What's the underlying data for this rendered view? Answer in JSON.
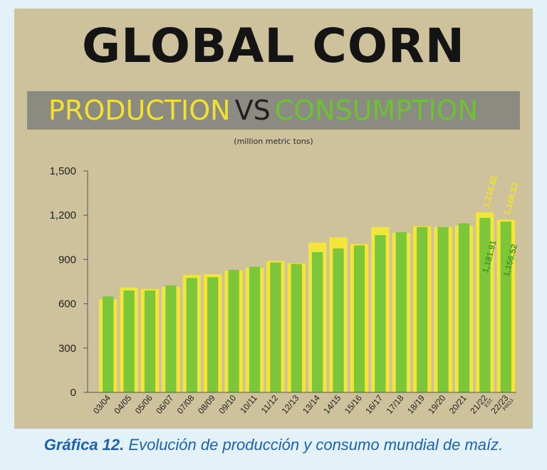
{
  "title": "GLOBAL CORN",
  "subtitle": {
    "production": "PRODUCTION",
    "vs": "VS",
    "consumption": "CONSUMPTION"
  },
  "unit": "(million metric tons)",
  "caption": {
    "label": "Gráfica 12.",
    "text": "Evolución de producción y consumo mundial de maíz."
  },
  "colors": {
    "production": "#f4e53a",
    "consumption": "#7cc63a",
    "background": "#cdc29b",
    "caption": "#1b62b2"
  },
  "chart_data": {
    "type": "bar",
    "title": "GLOBAL CORN PRODUCTION VS CONSUMPTION",
    "ylabel": "(million metric tons)",
    "ylim": [
      0,
      1500
    ],
    "yticks": [
      "0",
      "300",
      "600",
      "900",
      "1,200",
      "1,500"
    ],
    "categories": [
      "03/04",
      "04/05",
      "05/06",
      "06/07",
      "07/08",
      "08/09",
      "09/10",
      "10/11",
      "11/12",
      "12/13",
      "13/14",
      "14/15",
      "15/16",
      "16/17",
      "17/18",
      "18/19",
      "19/20",
      "20/21",
      "21/22",
      "22/23"
    ],
    "category_notes": [
      "",
      "",
      "",
      "",
      "",
      "",
      "",
      "",
      "",
      "",
      "",
      "",
      "",
      "",
      "",
      "",
      "",
      "",
      "EST.",
      "PROJ."
    ],
    "series": [
      {
        "name": "PRODUCTION",
        "values": [
          630,
          710,
          700,
          715,
          795,
          800,
          825,
          845,
          890,
          875,
          1015,
          1050,
          1005,
          1120,
          1080,
          1125,
          1120,
          1130,
          1219,
          1169
        ]
      },
      {
        "name": "CONSUMPTION",
        "values": [
          650,
          690,
          690,
          725,
          775,
          780,
          830,
          850,
          880,
          870,
          950,
          975,
          995,
          1065,
          1085,
          1120,
          1120,
          1145,
          1181.91,
          1156.52
        ]
      }
    ],
    "annotations": [
      {
        "category": "21/22",
        "series": "PRODUCTION",
        "text": "1,218.82"
      },
      {
        "category": "21/22",
        "series": "CONSUMPTION",
        "text": "1,181.91"
      },
      {
        "category": "22/23",
        "series": "PRODUCTION",
        "text": "1,168.52"
      },
      {
        "category": "22/23",
        "series": "CONSUMPTION",
        "text": "1,156.52"
      }
    ]
  }
}
